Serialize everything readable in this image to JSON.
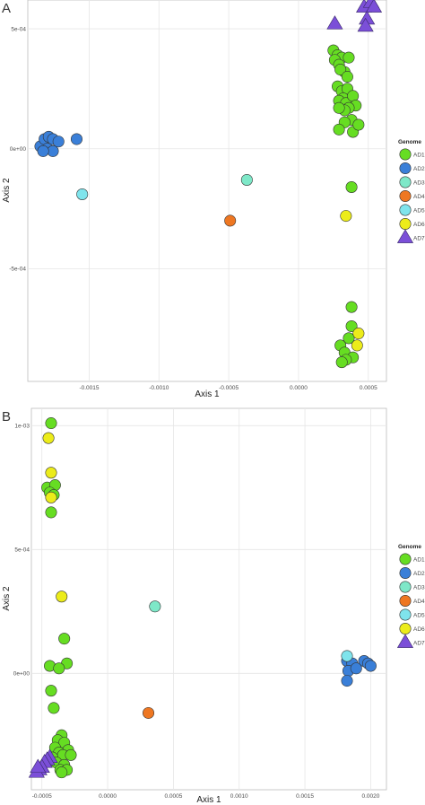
{
  "chart_data": [
    {
      "type": "scatter",
      "panel_label": "A",
      "title": "",
      "xlabel": "Axis 1",
      "ylabel": "Axis 2",
      "xlim": [
        -0.00194,
        0.00063
      ],
      "ylim": [
        -0.00097,
        0.00062
      ],
      "x_ticks": [
        -0.0015,
        -0.001,
        -0.0005,
        0.0,
        0.0005
      ],
      "x_tick_labels": [
        "-0.0015",
        "-0.0010",
        "-0.0005",
        "0.0000",
        "0.0005"
      ],
      "y_ticks": [
        -0.0005,
        0.0,
        0.0005
      ],
      "y_tick_labels": [
        "-5e-04",
        "0e+00",
        "5e-04"
      ],
      "grid": true,
      "legend_position": "right",
      "legend_title": "Genome",
      "series": [
        {
          "name": "AD1",
          "color": "#66dd22",
          "shape": "circle",
          "points": [
            [
              0.00025,
              0.00041
            ],
            [
              0.00028,
              0.00039
            ],
            [
              0.00031,
              0.00038
            ],
            [
              0.00026,
              0.00037
            ],
            [
              0.00036,
              0.00038
            ],
            [
              0.00029,
              0.00035
            ],
            [
              0.00033,
              0.00032
            ],
            [
              0.0003,
              0.00033
            ],
            [
              0.00035,
              0.0003
            ],
            [
              0.00028,
              0.00026
            ],
            [
              0.00031,
              0.00024
            ],
            [
              0.00035,
              0.00025
            ],
            [
              0.00032,
              0.00021
            ],
            [
              0.00029,
              0.0002
            ],
            [
              0.00034,
              0.00019
            ],
            [
              0.00039,
              0.00022
            ],
            [
              0.00041,
              0.00018
            ],
            [
              0.00036,
              0.00017
            ],
            [
              0.00033,
              0.00016
            ],
            [
              0.00029,
              0.00017
            ],
            [
              0.00038,
              0.00012
            ],
            [
              0.00033,
              0.00011
            ],
            [
              0.00029,
              8e-05
            ],
            [
              0.00039,
              7e-05
            ],
            [
              0.00043,
              0.0001
            ],
            [
              0.00038,
              -0.00016
            ],
            [
              0.00038,
              -0.00066
            ],
            [
              0.00038,
              -0.00074
            ],
            [
              0.00036,
              -0.00079
            ],
            [
              0.0003,
              -0.00082
            ],
            [
              0.00033,
              -0.00085
            ],
            [
              0.00039,
              -0.00087
            ],
            [
              0.00034,
              -0.00088
            ],
            [
              0.00031,
              -0.00089
            ]
          ]
        },
        {
          "name": "AD2",
          "color": "#3a7fd8",
          "shape": "circle",
          "points": [
            [
              -0.00185,
              1e-05
            ],
            [
              -0.00182,
              4e-05
            ],
            [
              -0.00179,
              5e-05
            ],
            [
              -0.00176,
              4e-05
            ],
            [
              -0.0018,
              0.0
            ],
            [
              -0.00176,
              -1e-05
            ],
            [
              -0.00172,
              3e-05
            ],
            [
              -0.00183,
              -1e-05
            ],
            [
              -0.00159,
              4e-05
            ]
          ]
        },
        {
          "name": "AD3",
          "color": "#7ee8c8",
          "shape": "circle",
          "points": [
            [
              -0.00037,
              -0.00013
            ]
          ]
        },
        {
          "name": "AD4",
          "color": "#ee7722",
          "shape": "circle",
          "points": [
            [
              -0.00049,
              -0.0003
            ]
          ]
        },
        {
          "name": "AD5",
          "color": "#7fe4ec",
          "shape": "circle",
          "points": [
            [
              -0.00155,
              -0.00019
            ]
          ]
        },
        {
          "name": "AD6",
          "color": "#ecec1a",
          "shape": "circle",
          "points": [
            [
              0.00034,
              -0.00028
            ],
            [
              0.00043,
              -0.00077
            ],
            [
              0.00042,
              -0.00082
            ]
          ]
        },
        {
          "name": "AD7",
          "color": "#7b4fd8",
          "shape": "triangle",
          "points": [
            [
              0.00026,
              0.00052
            ],
            [
              0.00047,
              0.00059
            ],
            [
              0.00052,
              0.00061
            ],
            [
              0.00054,
              0.00059
            ],
            [
              0.00049,
              0.00054
            ],
            [
              0.00048,
              0.00051
            ]
          ]
        }
      ]
    },
    {
      "type": "scatter",
      "panel_label": "B",
      "title": "",
      "xlabel": "Axis 1",
      "ylabel": "Axis 2",
      "xlim": [
        -0.00058,
        0.00212
      ],
      "ylim": [
        -0.00047,
        0.00107
      ],
      "x_ticks": [
        -0.0005,
        0.0,
        0.0005,
        0.001,
        0.0015,
        0.002
      ],
      "x_tick_labels": [
        "-0.0005",
        "0.0000",
        "0.0005",
        "0.0010",
        "0.0015",
        "0.0020"
      ],
      "y_ticks": [
        0.0,
        0.0005,
        0.001
      ],
      "y_tick_labels": [
        "0e+00",
        "5e-04",
        "1e-03"
      ],
      "grid": true,
      "legend_position": "right",
      "legend_title": "Genome",
      "series": [
        {
          "name": "AD1",
          "color": "#66dd22",
          "shape": "circle",
          "points": [
            [
              -0.00043,
              0.00101
            ],
            [
              -0.00046,
              0.00075
            ],
            [
              -0.0004,
              0.00076
            ],
            [
              -0.00044,
              0.00073
            ],
            [
              -0.00041,
              0.00072
            ],
            [
              -0.00043,
              0.00065
            ],
            [
              -0.00033,
              0.00014
            ],
            [
              -0.00031,
              4e-05
            ],
            [
              -0.00044,
              3e-05
            ],
            [
              -0.00037,
              2e-05
            ],
            [
              -0.00043,
              -7e-05
            ],
            [
              -0.00041,
              -0.00014
            ],
            [
              -0.00035,
              -0.00025
            ],
            [
              -0.00038,
              -0.00027
            ],
            [
              -0.00033,
              -0.00028
            ],
            [
              -0.0004,
              -0.0003
            ],
            [
              -0.0003,
              -0.00031
            ],
            [
              -0.00037,
              -0.00032
            ],
            [
              -0.00034,
              -0.00033
            ],
            [
              -0.00028,
              -0.00033
            ],
            [
              -0.00042,
              -0.00034
            ],
            [
              -0.00039,
              -0.00036
            ],
            [
              -0.00033,
              -0.00037
            ],
            [
              -0.00036,
              -0.00039
            ],
            [
              -0.00031,
              -0.00039
            ],
            [
              -0.00035,
              -0.0004
            ]
          ]
        },
        {
          "name": "AD2",
          "color": "#3a7fd8",
          "shape": "circle",
          "points": [
            [
              0.00182,
              5e-05
            ],
            [
              0.00186,
              4e-05
            ],
            [
              0.00195,
              5e-05
            ],
            [
              0.00198,
              4e-05
            ],
            [
              0.002,
              3e-05
            ],
            [
              0.00183,
              1e-05
            ],
            [
              0.00189,
              2e-05
            ],
            [
              0.00182,
              -3e-05
            ]
          ]
        },
        {
          "name": "AD3",
          "color": "#7ee8c8",
          "shape": "circle",
          "points": [
            [
              0.00036,
              0.00027
            ]
          ]
        },
        {
          "name": "AD4",
          "color": "#ee7722",
          "shape": "circle",
          "points": [
            [
              0.00031,
              -0.00016
            ]
          ]
        },
        {
          "name": "AD5",
          "color": "#7fe4ec",
          "shape": "circle",
          "points": [
            [
              0.00182,
              7e-05
            ]
          ]
        },
        {
          "name": "AD6",
          "color": "#ecec1a",
          "shape": "circle",
          "points": [
            [
              -0.00045,
              0.00095
            ],
            [
              -0.00043,
              0.00081
            ],
            [
              -0.00043,
              0.00071
            ],
            [
              -0.00035,
              0.00031
            ]
          ]
        },
        {
          "name": "AD7",
          "color": "#7b4fd8",
          "shape": "triangle",
          "points": [
            [
              -0.00044,
              -0.00034
            ],
            [
              -0.00046,
              -0.00035
            ],
            [
              -0.00048,
              -0.00036
            ],
            [
              -0.0005,
              -0.00038
            ],
            [
              -0.00052,
              -0.00039
            ],
            [
              -0.00054,
              -0.0004
            ],
            [
              -0.00053,
              -0.00038
            ]
          ]
        }
      ]
    }
  ]
}
